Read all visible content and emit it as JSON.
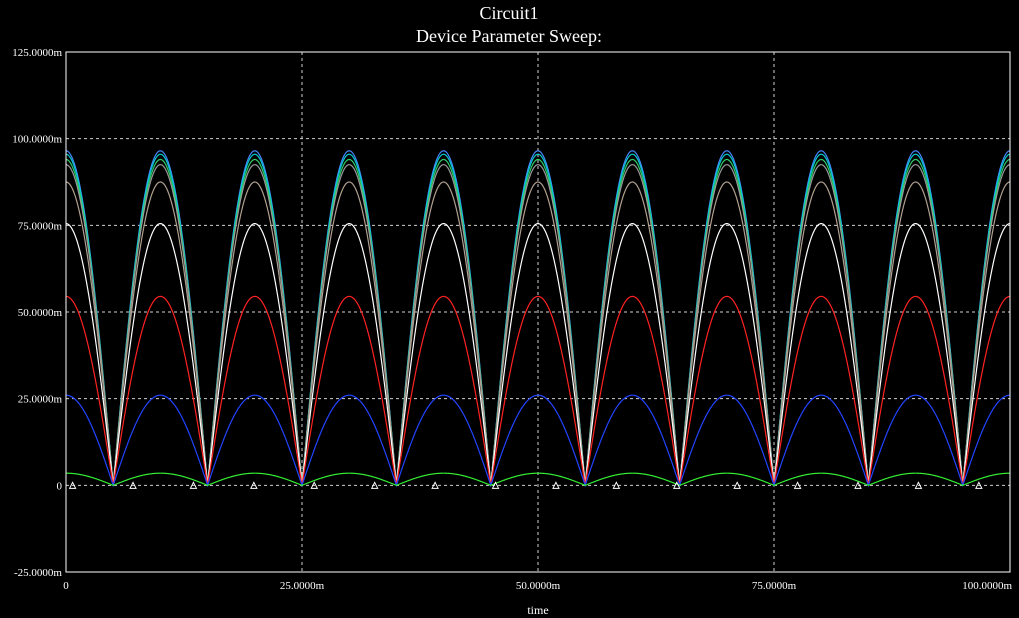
{
  "chart_data": {
    "type": "line",
    "title": "Circuit1",
    "subtitle": "Device Parameter Sweep:",
    "xlabel": "time",
    "ylabel": "",
    "xlim": [
      0,
      0.1
    ],
    "ylim": [
      -0.025,
      0.125
    ],
    "x_ticks": [
      {
        "value": 0,
        "label": "0"
      },
      {
        "value": 0.025,
        "label": "25.0000m"
      },
      {
        "value": 0.05,
        "label": "50.0000m"
      },
      {
        "value": 0.075,
        "label": "75.0000m"
      },
      {
        "value": 0.1,
        "label": "100.0000m"
      }
    ],
    "y_ticks": [
      {
        "value": -0.025,
        "label": "-25.0000m"
      },
      {
        "value": 0,
        "label": "0"
      },
      {
        "value": 0.025,
        "label": "25.0000m"
      },
      {
        "value": 0.05,
        "label": "50.0000m"
      },
      {
        "value": 0.075,
        "label": "75.0000m"
      },
      {
        "value": 0.1,
        "label": "100.0000m"
      },
      {
        "value": 0.125,
        "label": "125.0000m"
      }
    ],
    "grid": true,
    "waveform": "full-wave rectified sine",
    "pulse_period": 0.01,
    "pulse_peaks_x": [
      0,
      0.01,
      0.02,
      0.03,
      0.04,
      0.05,
      0.06,
      0.07,
      0.08,
      0.09,
      0.1
    ],
    "series": [
      {
        "color": "#4488ff",
        "peak": 0.0965
      },
      {
        "color": "#00cccc",
        "peak": 0.0955
      },
      {
        "color": "#33cc66",
        "peak": 0.094
      },
      {
        "color": "#999999",
        "peak": 0.0925
      },
      {
        "color": "#b0a090",
        "peak": 0.0875
      },
      {
        "color": "#ffffff",
        "peak": 0.0755
      },
      {
        "color": "#ff2222",
        "peak": 0.0545
      },
      {
        "color": "#2244ff",
        "peak": 0.026
      },
      {
        "color": "#33ee33",
        "peak": 0.0035
      }
    ],
    "marker_points": [
      {
        "x": 0.0007,
        "y": 0
      },
      {
        "x": 0.0071,
        "y": 0
      },
      {
        "x": 0.0135,
        "y": 0
      },
      {
        "x": 0.0199,
        "y": 0
      },
      {
        "x": 0.0263,
        "y": 0
      },
      {
        "x": 0.0327,
        "y": 0
      },
      {
        "x": 0.0391,
        "y": 0
      },
      {
        "x": 0.0455,
        "y": 0
      },
      {
        "x": 0.0519,
        "y": 0
      },
      {
        "x": 0.0583,
        "y": 0
      },
      {
        "x": 0.0647,
        "y": 0
      },
      {
        "x": 0.0711,
        "y": 0
      },
      {
        "x": 0.0775,
        "y": 0
      },
      {
        "x": 0.0839,
        "y": 0
      },
      {
        "x": 0.0903,
        "y": 0
      },
      {
        "x": 0.0967,
        "y": 0
      }
    ]
  }
}
